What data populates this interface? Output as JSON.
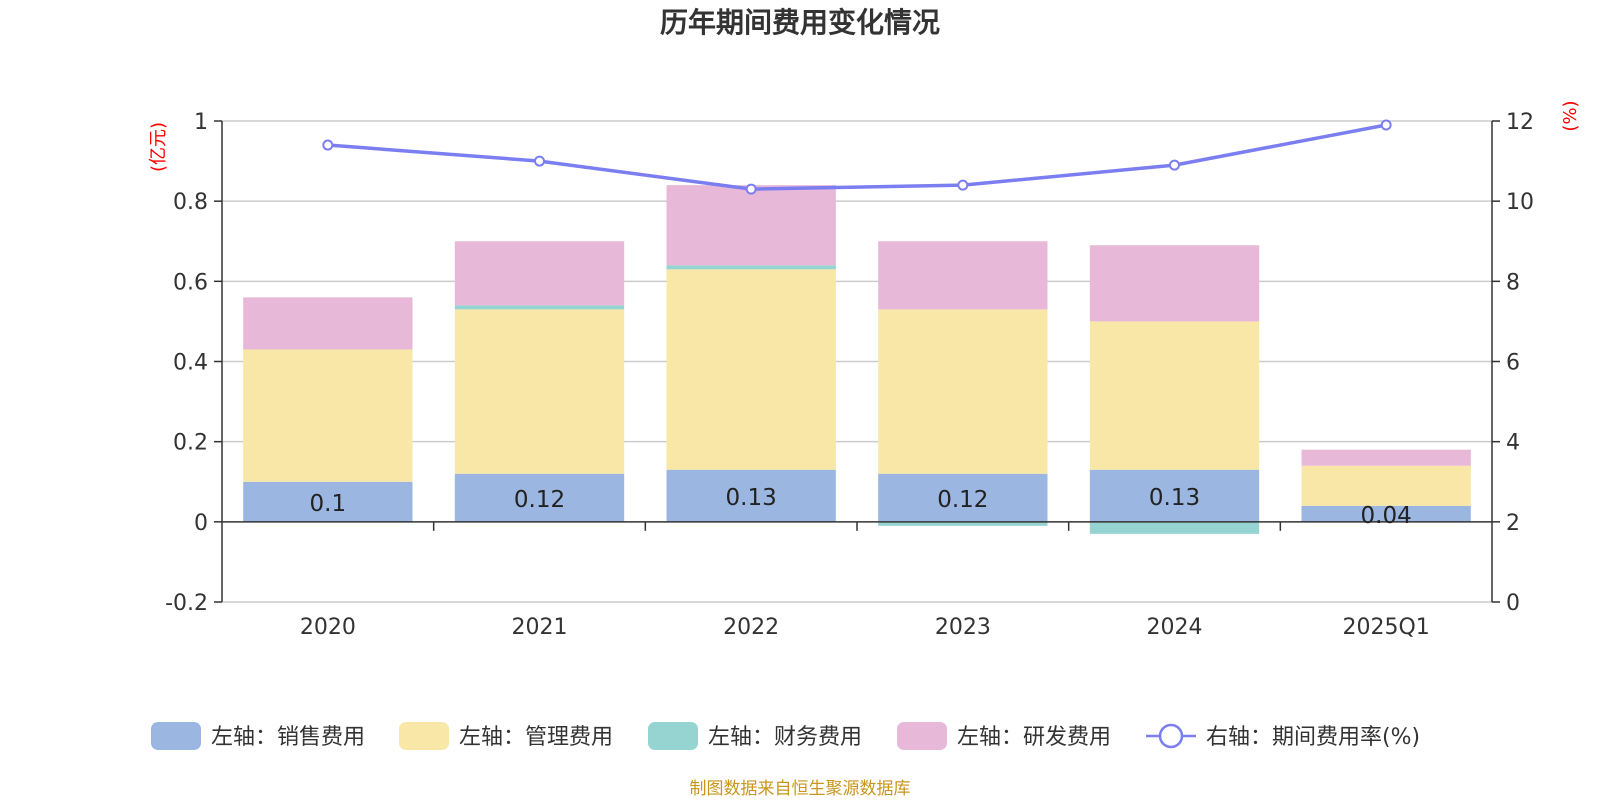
{
  "title": "历年期间费用变化情况",
  "source": "制图数据来自恒生聚源数据库",
  "colors": {
    "selling": "#9bb7e1",
    "admin": "#f8e7a6",
    "finance": "#96d4d2",
    "rnd": "#e8b8d9",
    "rate_line": "#7b7ef0"
  },
  "chart_data": {
    "type": "bar",
    "stacked": true,
    "categories": [
      "2020",
      "2021",
      "2022",
      "2023",
      "2024",
      "2025Q1"
    ],
    "series": [
      {
        "name": "左轴：销售费用",
        "key": "selling",
        "axis": "left",
        "values": [
          0.1,
          0.12,
          0.13,
          0.12,
          0.13,
          0.04
        ],
        "labels": [
          "0.1",
          "0.12",
          "0.13",
          "0.12",
          "0.13",
          "0.04"
        ]
      },
      {
        "name": "左轴：管理费用",
        "key": "admin",
        "axis": "left",
        "values": [
          0.33,
          0.41,
          0.5,
          0.41,
          0.37,
          0.1
        ]
      },
      {
        "name": "左轴：财务费用",
        "key": "finance",
        "axis": "left",
        "values": [
          0.0,
          0.01,
          0.01,
          -0.01,
          -0.03,
          0.0
        ]
      },
      {
        "name": "左轴：研发费用",
        "key": "rnd",
        "axis": "left",
        "values": [
          0.13,
          0.16,
          0.2,
          0.17,
          0.19,
          0.04
        ]
      },
      {
        "name": "右轴：期间费用率(%)",
        "key": "rate_line",
        "axis": "right",
        "type": "line",
        "values": [
          11.4,
          11.0,
          10.3,
          10.4,
          10.9,
          11.9
        ]
      }
    ],
    "left_axis": {
      "unit": "(亿元)",
      "ylim": [
        -0.2,
        1.0
      ],
      "ticks": [
        -0.2,
        0,
        0.2,
        0.4,
        0.6,
        0.8,
        1
      ],
      "tick_labels": [
        "-0.2",
        "0",
        "0.2",
        "0.4",
        "0.6",
        "0.8",
        "1"
      ]
    },
    "right_axis": {
      "unit": "(%)",
      "ylim": [
        0,
        12
      ],
      "ticks": [
        0,
        2,
        4,
        6,
        8,
        10,
        12
      ],
      "tick_labels": [
        "0",
        "2",
        "4",
        "6",
        "8",
        "10",
        "12"
      ]
    },
    "legend_position": "bottom",
    "grid": true
  }
}
